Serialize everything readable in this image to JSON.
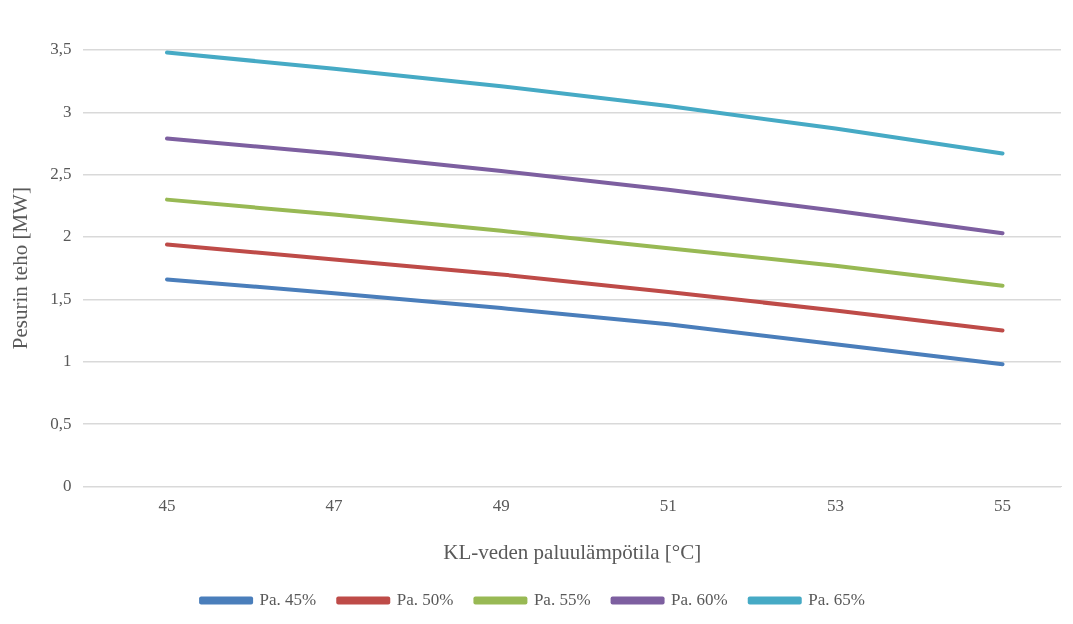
{
  "chart_data": {
    "type": "line",
    "xlabel": "KL-veden paluulämpötila [°C]",
    "ylabel": "Pesurin teho [MW]",
    "x": [
      45,
      47,
      49,
      51,
      53,
      55
    ],
    "xlim": [
      44,
      55.7
    ],
    "xticks": [
      45,
      47,
      49,
      51,
      53,
      55
    ],
    "ylim": [
      0,
      3.5
    ],
    "yticks": [
      0,
      {
        "value": 0.5,
        "label": "0,5"
      },
      1,
      {
        "value": 1.5,
        "label": "1,5"
      },
      2,
      {
        "value": 2.5,
        "label": "2,5"
      },
      3,
      {
        "value": 3.5,
        "label": "3,5"
      }
    ],
    "grid": "y",
    "legend": "bottom",
    "marker": "none",
    "line_style": "solid",
    "series": [
      {
        "name": "Pa. 45%",
        "color": "#4a7ebb",
        "values": [
          1.66,
          1.55,
          1.43,
          1.3,
          1.14,
          0.98
        ]
      },
      {
        "name": "Pa. 50%",
        "color": "#be4b48",
        "values": [
          1.94,
          1.82,
          1.7,
          1.56,
          1.41,
          1.25
        ]
      },
      {
        "name": "Pa. 55%",
        "color": "#98b954",
        "values": [
          2.3,
          2.18,
          2.05,
          1.91,
          1.77,
          1.61
        ]
      },
      {
        "name": "Pa. 60%",
        "color": "#7d5fa0",
        "values": [
          2.79,
          2.67,
          2.53,
          2.38,
          2.21,
          2.03
        ]
      },
      {
        "name": "Pa. 65%",
        "color": "#46aac5",
        "values": [
          3.48,
          3.35,
          3.21,
          3.05,
          2.87,
          2.67
        ]
      }
    ]
  }
}
